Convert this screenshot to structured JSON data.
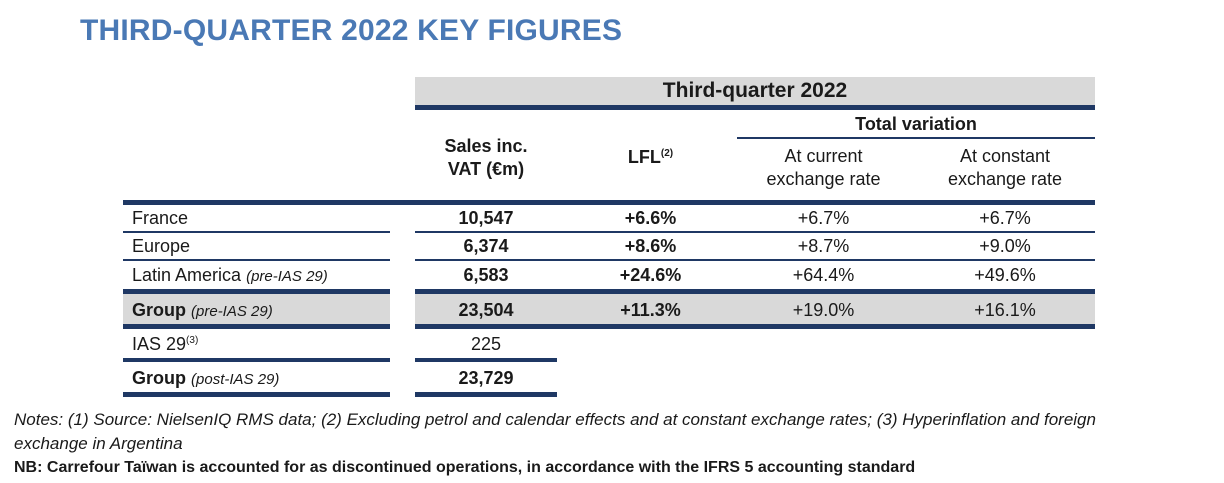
{
  "title": "THIRD-QUARTER 2022 KEY FIGURES",
  "table": {
    "period": "Third-quarter 2022",
    "total_variation": "Total variation",
    "headers": {
      "sales_line1": "Sales inc.",
      "sales_line2": "VAT (€m)",
      "lfl": "LFL",
      "lfl_note": "(2)",
      "current_line1": "At current",
      "current_line2": "exchange rate",
      "constant_line1": "At constant",
      "constant_line2": "exchange rate"
    },
    "rows": [
      {
        "label": "France",
        "qualifier": "",
        "sales": "10,547",
        "lfl": "+6.6%",
        "current": "+6.7%",
        "constant": "+6.7%"
      },
      {
        "label": "Europe",
        "qualifier": "",
        "sales": "6,374",
        "lfl": "+8.6%",
        "current": "+8.7%",
        "constant": "+9.0%"
      },
      {
        "label": "Latin America",
        "qualifier": "(pre-IAS 29)",
        "sales": "6,583",
        "lfl": "+24.6%",
        "current": "+64.4%",
        "constant": "+49.6%"
      },
      {
        "label": "Group",
        "qualifier": "(pre-IAS 29)",
        "sales": "23,504",
        "lfl": "+11.3%",
        "current": "+19.0%",
        "constant": "+16.1%"
      },
      {
        "label": "IAS 29",
        "note": "(3)",
        "sales": "225"
      },
      {
        "label": "Group",
        "qualifier": "(post-IAS 29)",
        "sales": "23,729"
      }
    ]
  },
  "notes": {
    "line1": "Notes: (1) Source: NielsenIQ RMS data; (2) Excluding petrol and calendar effects and at constant exchange rates; (3) Hyperinflation and foreign",
    "line2": "exchange in Argentina",
    "nb": "NB: Carrefour Taïwan is accounted for as discontinued operations, in accordance with the IFRS 5 accounting standard"
  }
}
